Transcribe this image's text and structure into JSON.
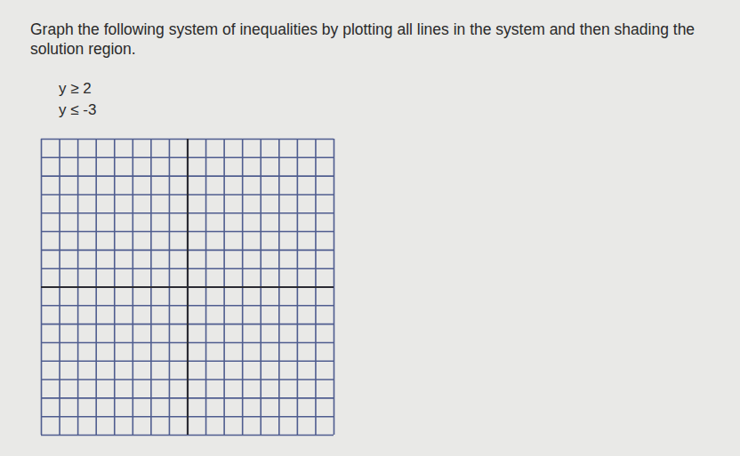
{
  "chart_data": {
    "type": "grid",
    "title": "Graph the following system of inequalities by plotting all lines in the system and then shading the solution region.",
    "annotations": [
      "y ≥ 2",
      "y ≤ -3"
    ],
    "xlim": [
      -8,
      8
    ],
    "ylim": [
      -8,
      8
    ],
    "xticks": [
      -8,
      -7,
      -6,
      -5,
      -4,
      -3,
      -2,
      -1,
      0,
      1,
      2,
      3,
      4,
      5,
      6,
      7,
      8
    ],
    "yticks": [
      -8,
      -7,
      -6,
      -5,
      -4,
      -3,
      -2,
      -1,
      0,
      1,
      2,
      3,
      4,
      5,
      6,
      7,
      8
    ],
    "grid": true,
    "tick_labels": false
  }
}
